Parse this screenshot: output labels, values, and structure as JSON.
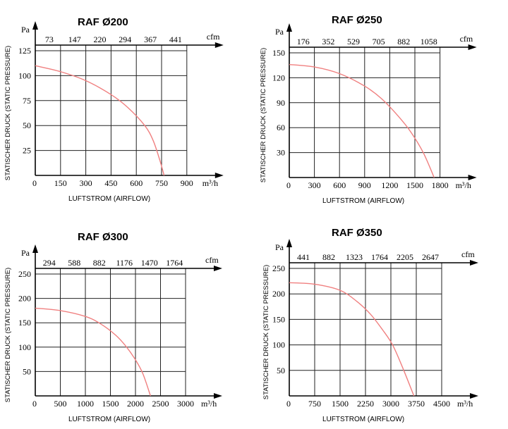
{
  "chart_data": [
    {
      "type": "line",
      "title": "RAF Ø200",
      "ylabel": "STATISCHER DRUCK (STATIC PRESSURE)",
      "xlabel": "LUFTSTROM (AIRFLOW)",
      "y_unit": "Pa",
      "x_unit": "m³/h",
      "top_unit": "cfm",
      "origin_label": "0",
      "xlim": [
        0,
        900
      ],
      "ylim": [
        0,
        125
      ],
      "x_ticks": [
        "150",
        "300",
        "450",
        "600",
        "750",
        "900"
      ],
      "y_ticks": [
        "25",
        "50",
        "75",
        "100",
        "125"
      ],
      "top_ticks": [
        "73",
        "147",
        "220",
        "294",
        "367",
        "441"
      ],
      "grid": true,
      "curve_color": "#f08080",
      "series": [
        {
          "x": [
            0,
            150,
            300,
            450,
            550,
            650,
            700,
            740,
            765
          ],
          "y": [
            110,
            104,
            95,
            81,
            68,
            50,
            35,
            15,
            0
          ]
        }
      ]
    },
    {
      "type": "line",
      "title": "RAF Ø250",
      "ylabel": "STATISCHER DRUCK (STATIC PRESSURE)",
      "xlabel": "LUFTSTROM (AIRFLOW)",
      "y_unit": "Pa",
      "x_unit": "m³/h",
      "top_unit": "cfm",
      "origin_label": "0",
      "xlim": [
        0,
        1800
      ],
      "ylim": [
        0,
        150
      ],
      "x_ticks": [
        "300",
        "600",
        "900",
        "1200",
        "1500",
        "1800"
      ],
      "y_ticks": [
        "30",
        "60",
        "90",
        "120",
        "150"
      ],
      "top_ticks": [
        "176",
        "352",
        "529",
        "705",
        "882",
        "1058"
      ],
      "grid": true,
      "curve_color": "#f08080",
      "series": [
        {
          "x": [
            0,
            300,
            600,
            900,
            1100,
            1300,
            1450,
            1600,
            1730
          ],
          "y": [
            136,
            133,
            125,
            110,
            95,
            74,
            55,
            30,
            0
          ]
        }
      ]
    },
    {
      "type": "line",
      "title": "RAF Ø300",
      "ylabel": "STATISCHER DRUCK (STATIC PRESSURE)",
      "xlabel": "LUFTSTROM (AIRFLOW)",
      "y_unit": "Pa",
      "x_unit": "m³/h",
      "top_unit": "cfm",
      "origin_label": "0",
      "xlim": [
        0,
        3000
      ],
      "ylim": [
        0,
        250
      ],
      "x_ticks": [
        "500",
        "1000",
        "1500",
        "2000",
        "2500",
        "3000"
      ],
      "y_ticks": [
        "50",
        "100",
        "150",
        "200",
        "250"
      ],
      "top_ticks": [
        "294",
        "588",
        "882",
        "1176",
        "1470",
        "1764"
      ],
      "grid": true,
      "curve_color": "#f08080",
      "series": [
        {
          "x": [
            0,
            500,
            1000,
            1300,
            1600,
            1800,
            2000,
            2150,
            2300
          ],
          "y": [
            180,
            175,
            163,
            148,
            125,
            103,
            74,
            45,
            0
          ]
        }
      ]
    },
    {
      "type": "line",
      "title": "RAF Ø350",
      "ylabel": "STATISCHER DRUCK (STATIC PRESSURE)",
      "xlabel": "LUFTSTROM (AIRFLOW)",
      "y_unit": "Pa",
      "x_unit": "m³/h",
      "top_unit": "cfm",
      "origin_label": "0",
      "xlim": [
        0,
        4500
      ],
      "ylim": [
        0,
        250
      ],
      "x_ticks": [
        "750",
        "1500",
        "2250",
        "3000",
        "3750",
        "4500"
      ],
      "y_ticks": [
        "50",
        "100",
        "150",
        "200",
        "250"
      ],
      "top_ticks": [
        "441",
        "882",
        "1323",
        "1764",
        "2205",
        "2647"
      ],
      "grid": true,
      "curve_color": "#f08080",
      "series": [
        {
          "x": [
            0,
            750,
            1500,
            2000,
            2400,
            2750,
            3050,
            3350,
            3680
          ],
          "y": [
            222,
            219,
            207,
            185,
            160,
            130,
            100,
            55,
            0
          ]
        }
      ]
    }
  ]
}
